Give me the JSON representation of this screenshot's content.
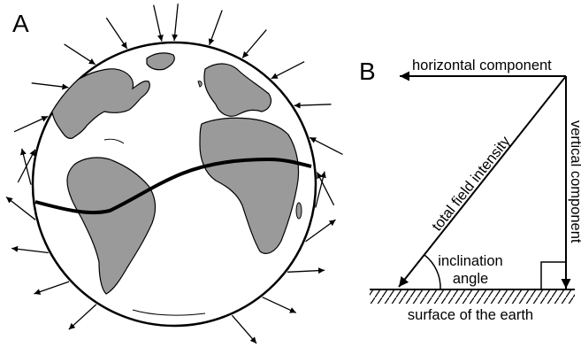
{
  "panels": {
    "a_letter": "A",
    "b_letter": "B"
  },
  "labels": {
    "horizontal": "horizontal component",
    "vertical": "vertical component",
    "total": "total field intensity",
    "inclination_line1": "inclination",
    "inclination_line2": "angle",
    "surface": "surface of the earth"
  },
  "colors": {
    "land": "#9a9a9a",
    "stroke": "#000000",
    "background": "#ffffff"
  }
}
